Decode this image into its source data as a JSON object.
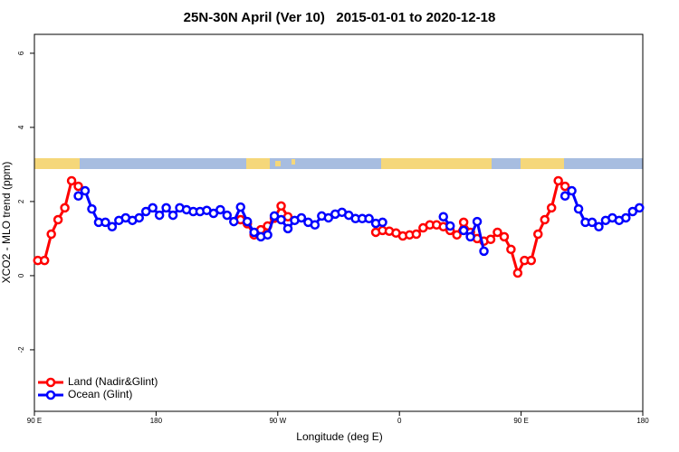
{
  "chart_data": {
    "type": "line",
    "title": "25N-30N April (Ver 10)   2015-01-01 to 2020-12-18",
    "x_label": "Longitude (deg E)",
    "y_label": "XCO2 - MLO trend (ppm)",
    "x": [
      92.5,
      97.5,
      102.5,
      107.5,
      112.5,
      117.5,
      122.5,
      127.5,
      132.5,
      137.5,
      142.5,
      147.5,
      152.5,
      157.5,
      162.5,
      167.5,
      172.5,
      177.5,
      182.5,
      187.5,
      192.5,
      197.5,
      202.5,
      207.5,
      212.5,
      217.5,
      222.5,
      227.5,
      232.5,
      237.5,
      242.5,
      247.5,
      252.5,
      257.5,
      262.5,
      267.5,
      272.5,
      277.5,
      282.5,
      287.5,
      292.5,
      297.5,
      302.5,
      307.5,
      312.5,
      317.5,
      322.5,
      327.5,
      332.5,
      337.5,
      342.5,
      347.5,
      352.5,
      357.5,
      362.5,
      367.5,
      372.5,
      377.5,
      382.5,
      387.5,
      392.5,
      397.5,
      402.5,
      407.5,
      412.5,
      417.5,
      422.5,
      427.5,
      432.5,
      437.5,
      442.5,
      447.5,
      452.5,
      457.5,
      462.5,
      467.5,
      472.5,
      477.5,
      482.5,
      487.5,
      492.5,
      497.5,
      502.5,
      507.5,
      512.5,
      517.5,
      522.5,
      527.5,
      532.5,
      537.5
    ],
    "series": [
      {
        "name": "Land (Nadir&Glint)",
        "color": "#ff0000",
        "values": [
          0.41,
          0.41,
          1.12,
          1.51,
          1.83,
          2.56,
          2.41,
          null,
          null,
          null,
          null,
          null,
          null,
          null,
          null,
          null,
          null,
          null,
          null,
          null,
          null,
          null,
          null,
          null,
          null,
          null,
          null,
          null,
          null,
          null,
          1.51,
          1.4,
          1.1,
          1.24,
          1.34,
          1.55,
          1.88,
          1.59,
          null,
          null,
          null,
          null,
          null,
          null,
          null,
          null,
          null,
          null,
          null,
          null,
          1.17,
          1.22,
          1.2,
          1.15,
          1.07,
          1.1,
          1.12,
          1.29,
          1.37,
          1.37,
          1.32,
          1.22,
          1.1,
          1.44,
          1.17,
          1.0,
          0.93,
          0.98,
          1.17,
          1.05,
          0.71,
          0.07,
          0.41,
          0.41,
          1.12,
          1.51,
          1.83,
          2.56,
          2.41,
          null,
          null,
          null,
          null,
          null,
          null,
          null,
          null,
          null,
          null,
          null
        ]
      },
      {
        "name": "Ocean (Glint)",
        "color": "#0000ff",
        "values": [
          null,
          null,
          null,
          null,
          null,
          null,
          2.15,
          2.29,
          1.8,
          1.44,
          1.44,
          1.32,
          1.49,
          1.56,
          1.49,
          1.56,
          1.73,
          1.83,
          1.63,
          1.83,
          1.63,
          1.83,
          1.78,
          1.73,
          1.73,
          1.76,
          1.68,
          1.78,
          1.63,
          1.46,
          1.85,
          1.46,
          1.17,
          1.05,
          1.1,
          1.61,
          1.51,
          1.27,
          1.49,
          1.56,
          1.44,
          1.37,
          1.61,
          1.56,
          1.66,
          1.71,
          1.63,
          1.54,
          1.54,
          1.54,
          1.41,
          1.44,
          null,
          null,
          null,
          null,
          null,
          null,
          null,
          null,
          1.59,
          1.34,
          null,
          1.22,
          1.05,
          1.46,
          0.66,
          null,
          null,
          null,
          null,
          null,
          null,
          null,
          null,
          null,
          null,
          null,
          2.15,
          2.29,
          1.8,
          1.44,
          1.44,
          1.32,
          1.49,
          1.56,
          1.49,
          1.56,
          1.73,
          1.83
        ]
      }
    ],
    "xlim": [
      90,
      540
    ],
    "ylim": [
      -3.66,
      6.51
    ],
    "xticks": [
      {
        "value": 90,
        "label": "90 E"
      },
      180,
      {
        "value": 270,
        "label": "90 W"
      },
      {
        "value": 360,
        "label": "0"
      },
      {
        "value": 450,
        "label": "90 E"
      },
      {
        "value": 540,
        "label": "180"
      }
    ],
    "yticks": [
      -2,
      0,
      2,
      4,
      6
    ],
    "legend": "bottom-left"
  }
}
